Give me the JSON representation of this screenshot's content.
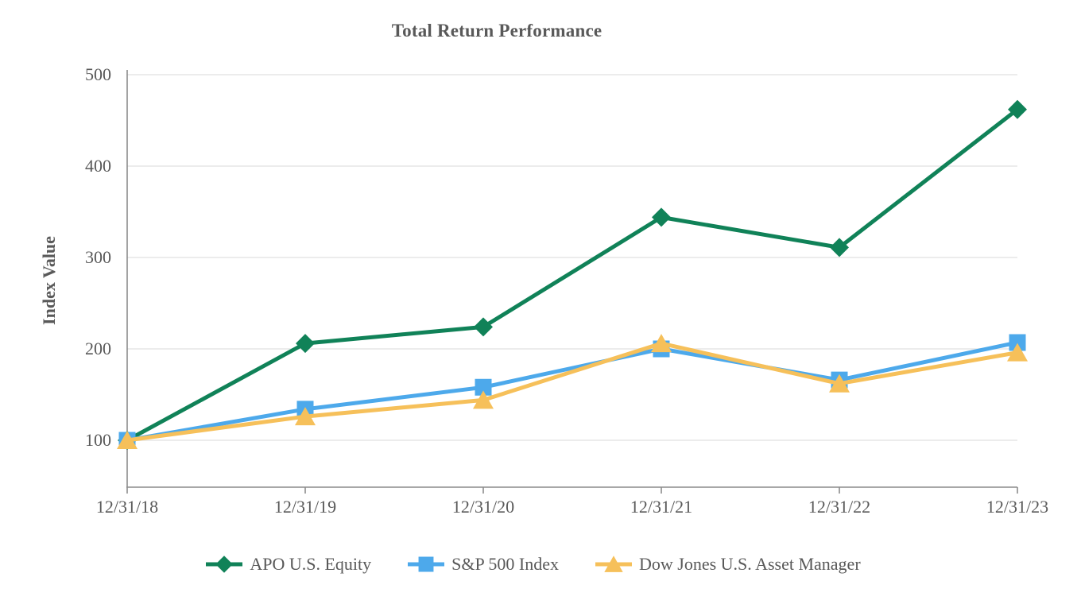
{
  "chart_data": {
    "type": "line",
    "title": "Total Return Performance",
    "xlabel": "",
    "ylabel": "Index Value",
    "categories": [
      "12/31/18",
      "12/31/19",
      "12/31/20",
      "12/31/21",
      "12/31/22",
      "12/31/23"
    ],
    "series": [
      {
        "name": "APO U.S. Equity",
        "marker": "diamond",
        "color": "#108258",
        "values": [
          100,
          206,
          224,
          344,
          311,
          462
        ]
      },
      {
        "name": "S&P 500 Index",
        "marker": "square",
        "color": "#4DA9EB",
        "values": [
          100,
          134,
          158,
          200,
          166,
          207
        ]
      },
      {
        "name": "Dow Jones U.S. Asset Manager",
        "marker": "triangle",
        "color": "#F6C05A",
        "values": [
          100,
          126,
          144,
          206,
          162,
          196
        ]
      }
    ],
    "yticks": [
      100,
      200,
      300,
      400,
      500
    ],
    "ylim": [
      48,
      500
    ],
    "grid": true,
    "legend_position": "bottom"
  },
  "colors": {
    "text": "#595959",
    "axis_line": "#8C8C8C",
    "gridline": "#ECECEC",
    "background": "#FFFFFF"
  }
}
